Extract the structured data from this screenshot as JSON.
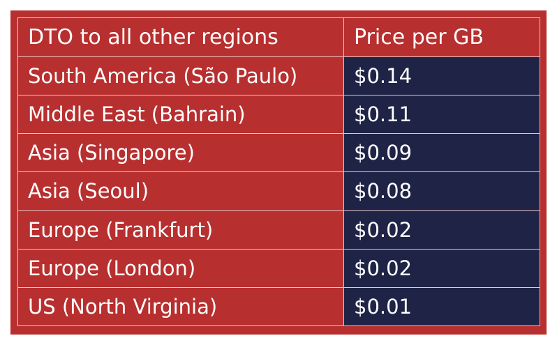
{
  "table": {
    "headers": [
      "DTO to all other regions",
      "Price per GB"
    ],
    "rows": [
      {
        "region": "South America (São Paulo)",
        "price": "$0.14"
      },
      {
        "region": "Middle East (Bahrain)",
        "price": "$0.11"
      },
      {
        "region": "Asia (Singapore)",
        "price": "$0.09"
      },
      {
        "region": "Asia (Seoul)",
        "price": "$0.08"
      },
      {
        "region": "Europe (Frankfurt)",
        "price": "$0.02"
      },
      {
        "region": "Europe (London)",
        "price": "$0.02"
      },
      {
        "region": "US (North Virginia)",
        "price": "$0.01"
      }
    ]
  },
  "colors": {
    "frame": "#b82f2f",
    "price_cell": "#1f2447",
    "grid_lines": "#e9c7c7",
    "text": "#ffffff"
  }
}
